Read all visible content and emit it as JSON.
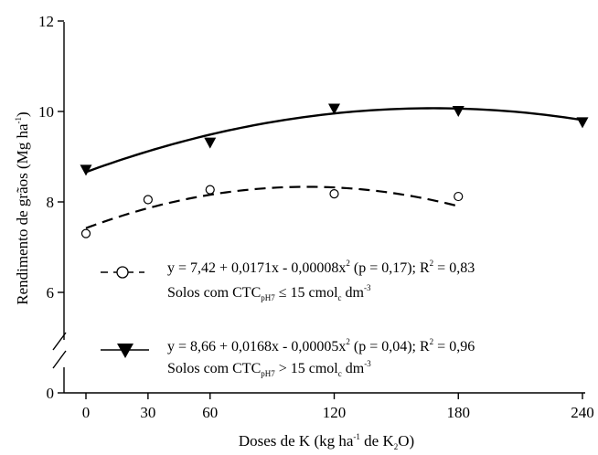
{
  "chart_data": {
    "type": "scatter",
    "xlabel": {
      "main": "Doses de K (kg ha",
      "sup1": "-1",
      "mid": " de K",
      "sub1": "2",
      "end": "O)"
    },
    "ylabel": {
      "main": "Rendimento de grãos (Mg ha",
      "sup": "-1",
      "end": ")"
    },
    "x_ticks": [
      0,
      30,
      60,
      120,
      180,
      240
    ],
    "y_ticks": [
      0,
      6,
      8,
      10,
      12
    ],
    "xlim": [
      0,
      240
    ],
    "ylim": [
      0,
      12
    ],
    "y_axis_break": [
      0,
      5.2
    ],
    "series": [
      {
        "key": "low",
        "marker": "open-circle",
        "line_style": "dashed",
        "x": [
          0,
          30,
          60,
          120,
          180
        ],
        "y": [
          7.3,
          8.05,
          8.27,
          8.18,
          8.12
        ],
        "fit": {
          "a": 7.42,
          "b": 0.0171,
          "c": -8e-05,
          "x_range": [
            0,
            180
          ]
        },
        "legend": {
          "eq_pre": "y = 7,42 + 0,0171x - 0,00008x",
          "eq_sup": "2",
          "eq_post": " (p = 0,17);  R",
          "r_sup": "2",
          "r_val": " = 0,83",
          "desc_pre": "Solos com CTC",
          "desc_sub": "pH7",
          "desc_mid": " ≤ 15 cmol",
          "desc_sub2": "c",
          "desc_post": " dm",
          "desc_sup": "-3"
        }
      },
      {
        "key": "high",
        "marker": "filled-triangle-down",
        "line_style": "solid",
        "x": [
          0,
          60,
          120,
          180,
          240
        ],
        "y": [
          8.7,
          9.3,
          10.05,
          10.0,
          9.75
        ],
        "fit": {
          "a": 8.66,
          "b": 0.0168,
          "c": -5e-05,
          "x_range": [
            0,
            240
          ]
        },
        "legend": {
          "eq_pre": "y = 8,66 + 0,0168x - 0,00005x",
          "eq_sup": "2",
          "eq_post": " (p = 0,04);  R",
          "r_sup": "2",
          "r_val": " = 0,96",
          "desc_pre": "Solos com CTC",
          "desc_sub": "pH7",
          "desc_mid": " > 15 cmol",
          "desc_sub2": "c",
          "desc_post": " dm",
          "desc_sup": "-3"
        }
      }
    ]
  }
}
